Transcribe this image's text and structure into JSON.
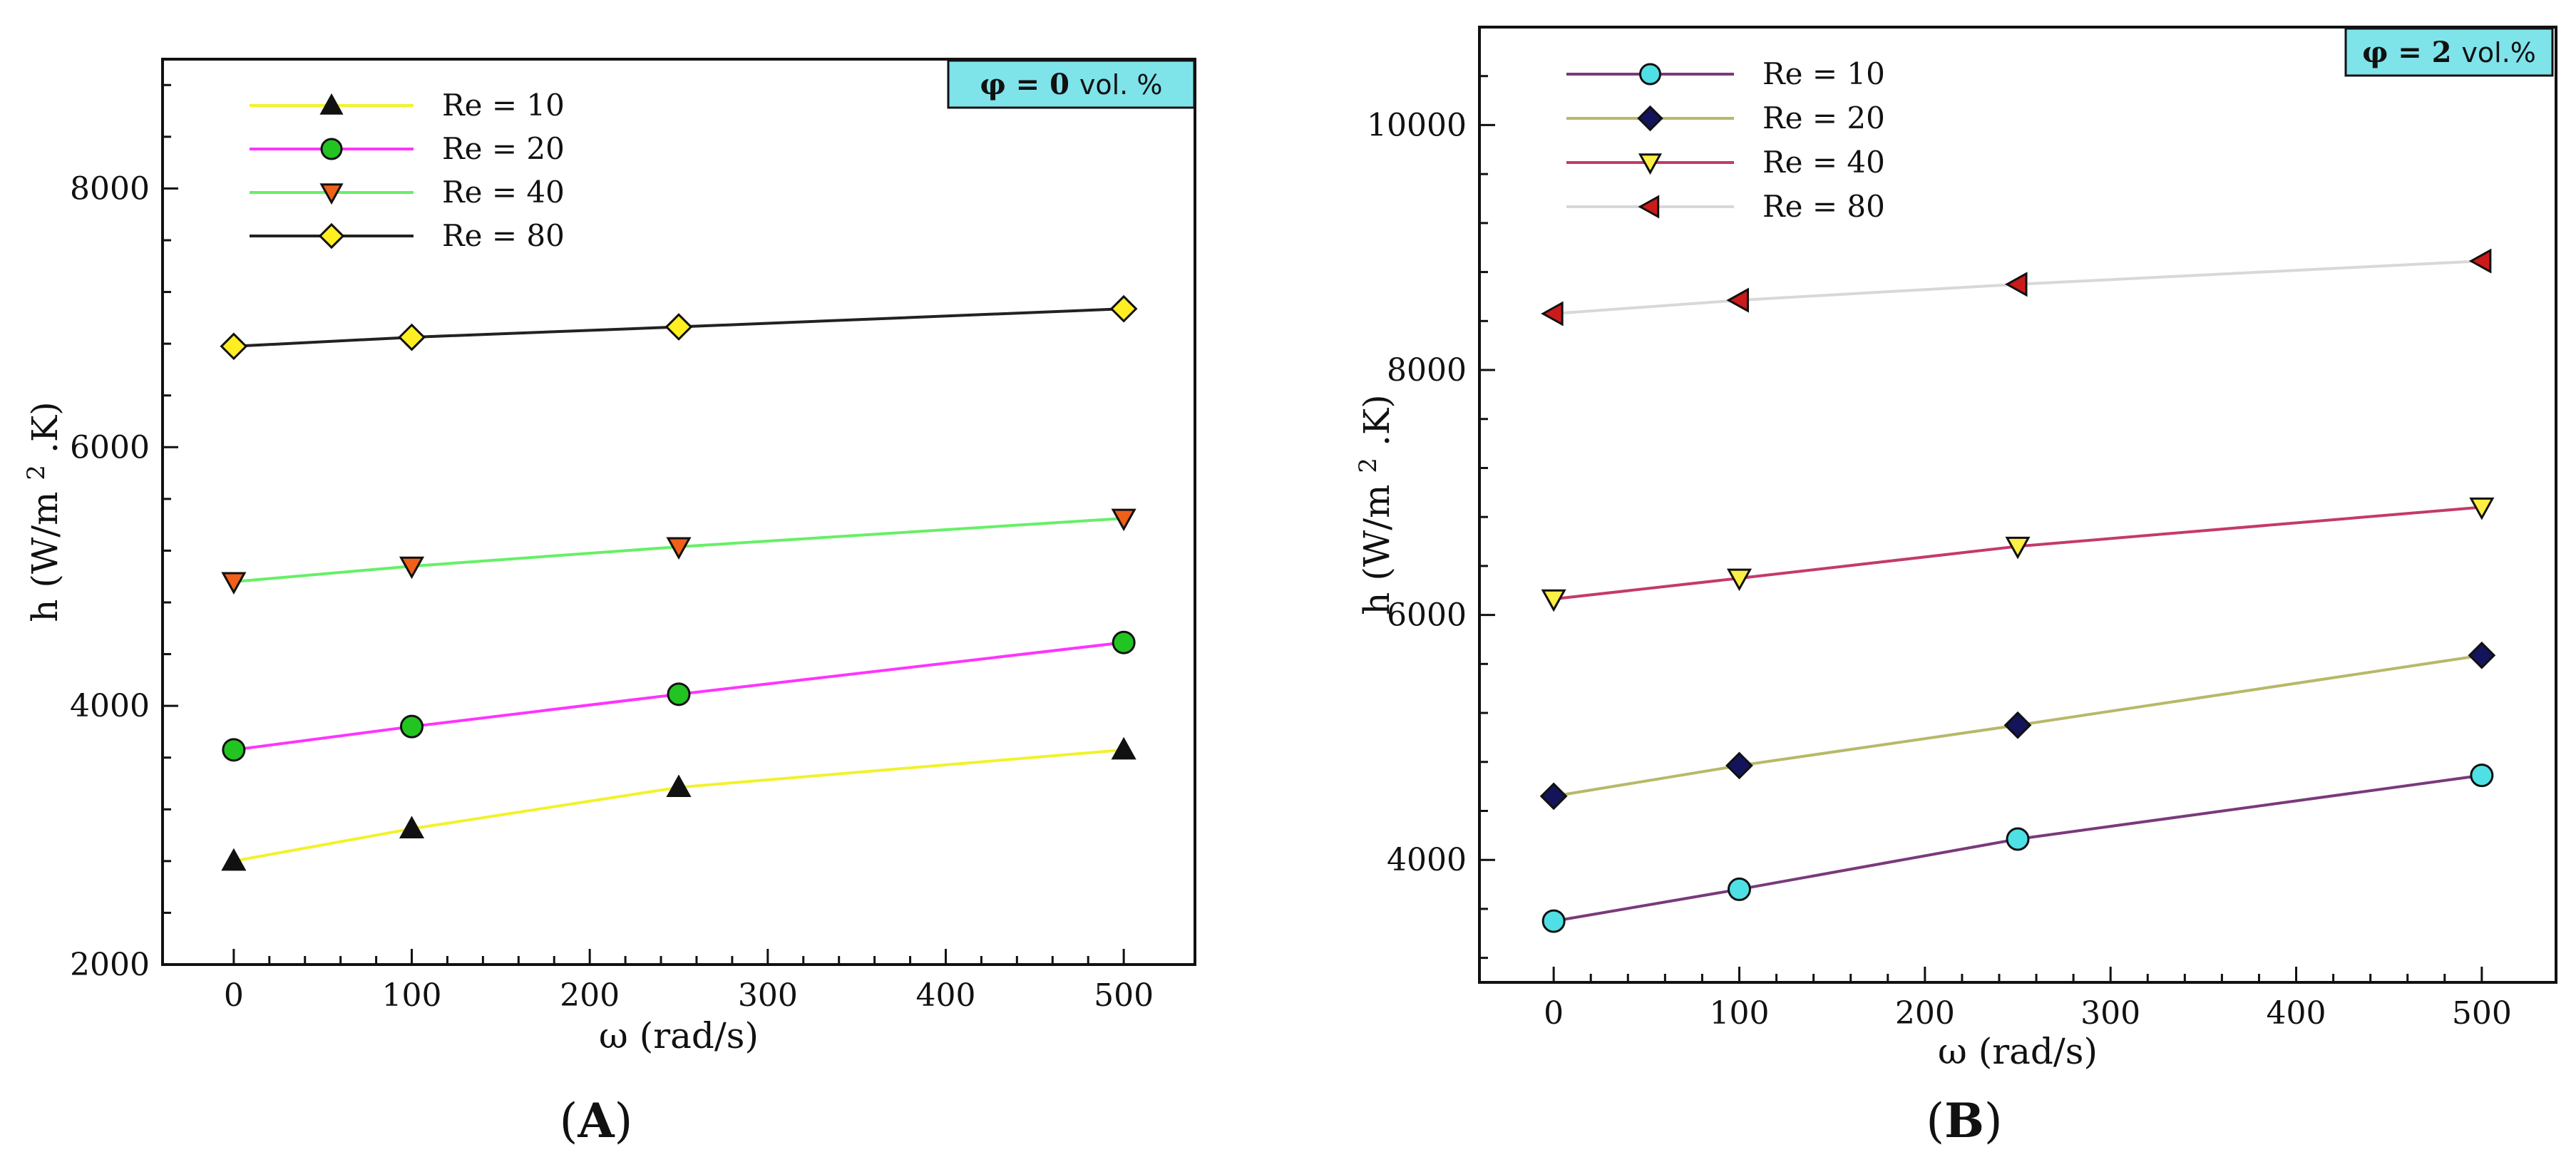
{
  "chart_data": [
    {
      "type": "line",
      "panel_label": "A",
      "annotation": "φ = 0 vol. %",
      "annotation_parts": {
        "symbol": "φ = 0",
        "unit": "vol. %"
      },
      "annotation_color": "#7fe3ea",
      "xlabel": "ω (rad/s)",
      "ylabel": "h (W/m 2 .K)",
      "ylabel_parts": {
        "main": "h (W/m",
        "sup": "2",
        "end": ".K)"
      },
      "xlim": [
        -40,
        540
      ],
      "ylim": [
        2000,
        9000
      ],
      "xticks": [
        0,
        100,
        200,
        300,
        400,
        500
      ],
      "xtick_labels": [
        "0",
        "100",
        "200",
        "300",
        "400",
        "500"
      ],
      "yticks": [
        2000,
        4000,
        6000,
        8000
      ],
      "ytick_labels": [
        "2000",
        "4000",
        "6000",
        "8000"
      ],
      "x": [
        0,
        100,
        250,
        500
      ],
      "legend_position": "top-left",
      "series": [
        {
          "name": "Re = 10",
          "values": [
            2800,
            3050,
            3370,
            3660
          ],
          "line_color": "#f2f22a",
          "marker": "triangle-up",
          "marker_color": "#111111"
        },
        {
          "name": "Re = 20",
          "values": [
            3660,
            3840,
            4090,
            4490
          ],
          "line_color": "#ff33ff",
          "marker": "circle",
          "marker_color": "#22c422"
        },
        {
          "name": "Re = 40",
          "values": [
            4960,
            5080,
            5230,
            5450
          ],
          "line_color": "#66f066",
          "marker": "triangle-down",
          "marker_color": "#f0601a"
        },
        {
          "name": "Re = 80",
          "values": [
            6780,
            6850,
            6930,
            7070
          ],
          "line_color": "#222222",
          "marker": "diamond",
          "marker_color": "#ffee22"
        }
      ]
    },
    {
      "type": "line",
      "panel_label": "B",
      "annotation": "φ = 2 vol.%",
      "annotation_parts": {
        "symbol": "φ = 2",
        "unit": "vol.%"
      },
      "annotation_color": "#7fe3ea",
      "xlabel": "ω (rad/s)",
      "ylabel": "h (W/m 2 .K)",
      "ylabel_parts": {
        "main": "h (W/m",
        "sup": "2",
        "end": ".K)"
      },
      "xlim": [
        -40,
        540
      ],
      "ylim": [
        3000,
        10800
      ],
      "xticks": [
        0,
        100,
        200,
        300,
        400,
        500
      ],
      "xtick_labels": [
        "0",
        "100",
        "200",
        "300",
        "400",
        "500"
      ],
      "yticks": [
        4000,
        6000,
        8000,
        10000
      ],
      "ytick_labels": [
        "4000",
        "6000",
        "8000",
        "10000"
      ],
      "x": [
        0,
        100,
        250,
        500
      ],
      "legend_position": "top-left",
      "series": [
        {
          "name": "Re = 10",
          "values": [
            3500,
            3760,
            4170,
            4690
          ],
          "line_color": "#7a3a7a",
          "marker": "circle",
          "marker_color": "#4fe0e6"
        },
        {
          "name": "Re = 20",
          "values": [
            4520,
            4770,
            5100,
            5670
          ],
          "line_color": "#b8b86a",
          "marker": "diamond",
          "marker_color": "#14145a"
        },
        {
          "name": "Re = 40",
          "values": [
            6130,
            6300,
            6560,
            6880
          ],
          "line_color": "#c43a6a",
          "marker": "triangle-down",
          "marker_color": "#ffee44"
        },
        {
          "name": "Re = 80",
          "values": [
            8460,
            8570,
            8700,
            8890
          ],
          "line_color": "#d8d8d8",
          "marker": "triangle-left",
          "marker_color": "#cc1a1a"
        }
      ]
    }
  ]
}
